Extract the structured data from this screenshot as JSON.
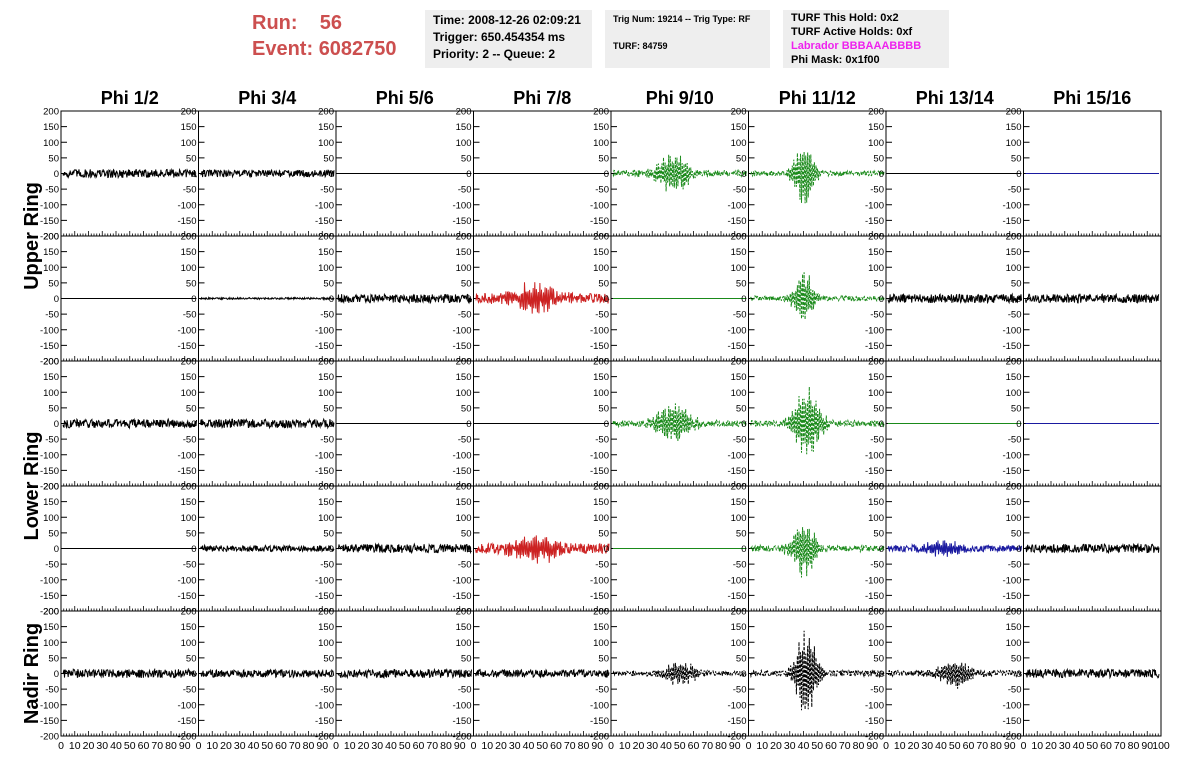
{
  "header": {
    "run_label": "Run:",
    "run_value": "56",
    "event_label": "Event:",
    "event_value": "6082750"
  },
  "info_box_1": {
    "time": "Time: 2008-12-26 02:09:21",
    "trigger": "Trigger: 650.454354 ms",
    "priority": "Priority: 2 -- Queue: 2"
  },
  "info_box_2": {
    "trig": "Trig Num: 19214 -- Trig Type: RF",
    "turf": "TURF: 84759"
  },
  "info_box_3": {
    "this_hold": "TURF This Hold: 0x2",
    "active_holds": "TURF Active Holds: 0xf",
    "labrador": "Labrador BBBAAABBBB",
    "phi_mask": "Phi Mask: 0x1f00"
  },
  "chart_data": {
    "type": "line",
    "columns": [
      "Phi 1/2",
      "Phi 3/4",
      "Phi 5/6",
      "Phi 7/8",
      "Phi 9/10",
      "Phi 11/12",
      "Phi 13/14",
      "Phi 15/16"
    ],
    "ring_labels": [
      "Upper Ring",
      "Lower Ring",
      "Nadir Ring"
    ],
    "ylim": [
      -200,
      200
    ],
    "xlim": [
      0,
      100
    ],
    "y_ticks": [
      200,
      150,
      100,
      50,
      0,
      -50,
      -100,
      -150,
      -200
    ],
    "x_tick_labels": [
      "0",
      "10",
      "20",
      "30",
      "40",
      "50",
      "60",
      "70",
      "80",
      "90"
    ],
    "x_last_label": "100",
    "colors": {
      "black": "#000000",
      "green": "#1a8a1a",
      "red": "#cc2222",
      "blue": "#1a1aa0"
    },
    "rows": [
      [
        {
          "color": "black",
          "amp": 14,
          "peak": 0,
          "center": 0,
          "width": 0,
          "dashed": false
        },
        {
          "color": "black",
          "amp": 12,
          "peak": 0,
          "center": 0,
          "width": 0,
          "dashed": false
        },
        {
          "color": "black",
          "amp": 0,
          "peak": 0,
          "center": 0,
          "width": 0,
          "dashed": false
        },
        {
          "color": "black",
          "amp": 0,
          "peak": 0,
          "center": 0,
          "width": 0,
          "dashed": false
        },
        {
          "color": "green",
          "amp": 10,
          "peak": 75,
          "center": 45,
          "width": 13,
          "dashed": true
        },
        {
          "color": "green",
          "amp": 8,
          "peak": 120,
          "center": 40,
          "width": 8,
          "dashed": true
        },
        {
          "color": "black",
          "amp": 0,
          "peak": 0,
          "center": 0,
          "width": 0,
          "dashed": false
        },
        {
          "color": "blue",
          "amp": 0,
          "peak": 0,
          "center": 0,
          "width": 0,
          "dashed": false
        }
      ],
      [
        {
          "color": "black",
          "amp": 0,
          "peak": 0,
          "center": 0,
          "width": 0,
          "dashed": false
        },
        {
          "color": "black",
          "amp": 3,
          "peak": 0,
          "center": 0,
          "width": 0,
          "dashed": false
        },
        {
          "color": "black",
          "amp": 14,
          "peak": 0,
          "center": 0,
          "width": 0,
          "dashed": false
        },
        {
          "color": "red",
          "amp": 16,
          "peak": 50,
          "center": 45,
          "width": 18,
          "dashed": false
        },
        {
          "color": "green",
          "amp": 0,
          "peak": 0,
          "center": 0,
          "width": 0,
          "dashed": false
        },
        {
          "color": "green",
          "amp": 8,
          "peak": 90,
          "center": 40,
          "width": 8,
          "dashed": true
        },
        {
          "color": "black",
          "amp": 14,
          "peak": 0,
          "center": 0,
          "width": 0,
          "dashed": false
        },
        {
          "color": "black",
          "amp": 14,
          "peak": 0,
          "center": 0,
          "width": 0,
          "dashed": false
        }
      ],
      [
        {
          "color": "black",
          "amp": 14,
          "peak": 0,
          "center": 0,
          "width": 0,
          "dashed": false
        },
        {
          "color": "black",
          "amp": 14,
          "peak": 0,
          "center": 0,
          "width": 0,
          "dashed": false
        },
        {
          "color": "black",
          "amp": 0,
          "peak": 0,
          "center": 0,
          "width": 0,
          "dashed": false
        },
        {
          "color": "black",
          "amp": 0,
          "peak": 0,
          "center": 0,
          "width": 0,
          "dashed": false
        },
        {
          "color": "green",
          "amp": 10,
          "peak": 65,
          "center": 45,
          "width": 15,
          "dashed": true
        },
        {
          "color": "green",
          "amp": 10,
          "peak": 120,
          "center": 42,
          "width": 11,
          "dashed": true
        },
        {
          "color": "green",
          "amp": 0,
          "peak": 0,
          "center": 0,
          "width": 0,
          "dashed": false
        },
        {
          "color": "blue",
          "amp": 0,
          "peak": 0,
          "center": 0,
          "width": 0,
          "dashed": false
        }
      ],
      [
        {
          "color": "black",
          "amp": 0,
          "peak": 0,
          "center": 0,
          "width": 0,
          "dashed": false
        },
        {
          "color": "black",
          "amp": 10,
          "peak": 0,
          "center": 0,
          "width": 0,
          "dashed": false
        },
        {
          "color": "black",
          "amp": 14,
          "peak": 0,
          "center": 0,
          "width": 0,
          "dashed": false
        },
        {
          "color": "red",
          "amp": 16,
          "peak": 45,
          "center": 45,
          "width": 18,
          "dashed": false
        },
        {
          "color": "green",
          "amp": 0,
          "peak": 0,
          "center": 0,
          "width": 0,
          "dashed": false
        },
        {
          "color": "green",
          "amp": 10,
          "peak": 95,
          "center": 40,
          "width": 10,
          "dashed": true
        },
        {
          "color": "blue",
          "amp": 10,
          "peak": 25,
          "center": 40,
          "width": 15,
          "dashed": false
        },
        {
          "color": "black",
          "amp": 14,
          "peak": 0,
          "center": 0,
          "width": 0,
          "dashed": false
        }
      ],
      [
        {
          "color": "black",
          "amp": 14,
          "peak": 0,
          "center": 0,
          "width": 0,
          "dashed": false
        },
        {
          "color": "black",
          "amp": 12,
          "peak": 0,
          "center": 0,
          "width": 0,
          "dashed": false
        },
        {
          "color": "black",
          "amp": 14,
          "peak": 0,
          "center": 0,
          "width": 0,
          "dashed": false
        },
        {
          "color": "black",
          "amp": 12,
          "peak": 0,
          "center": 0,
          "width": 0,
          "dashed": false
        },
        {
          "color": "black",
          "amp": 8,
          "peak": 40,
          "center": 50,
          "width": 13,
          "dashed": true
        },
        {
          "color": "black",
          "amp": 10,
          "peak": 150,
          "center": 42,
          "width": 9,
          "dashed": true
        },
        {
          "color": "black",
          "amp": 10,
          "peak": 45,
          "center": 50,
          "width": 13,
          "dashed": true
        },
        {
          "color": "black",
          "amp": 14,
          "peak": 0,
          "center": 0,
          "width": 0,
          "dashed": false
        }
      ]
    ]
  }
}
